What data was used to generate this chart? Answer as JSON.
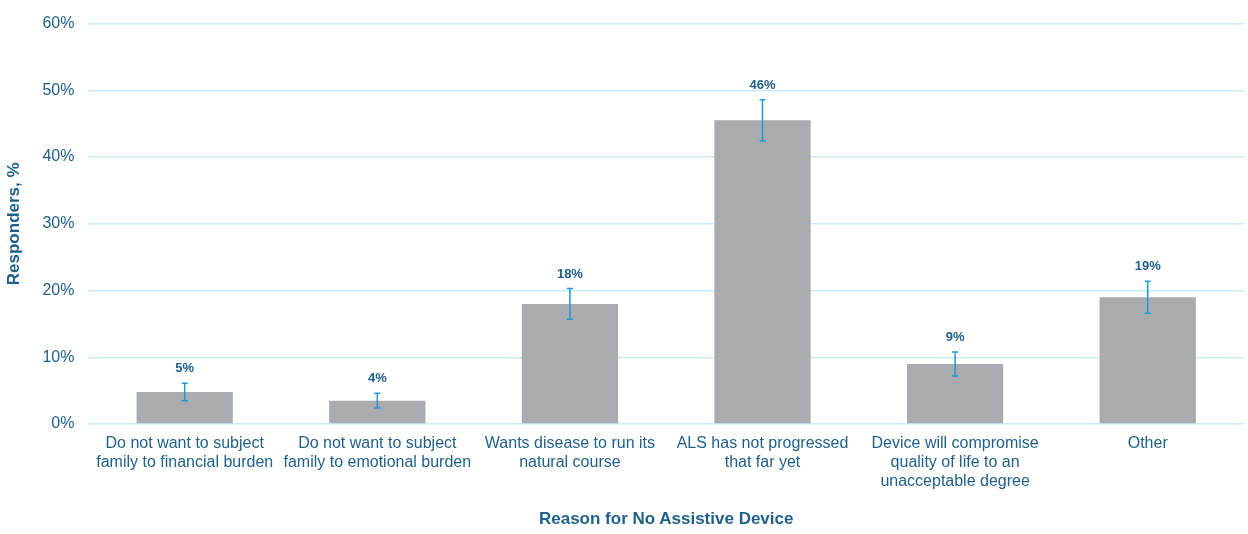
{
  "chart_data": {
    "type": "bar",
    "xlabel": "Reason for No Assistive Device",
    "ylabel": "Responders, %",
    "categories": [
      "Do not want to subject family to financial burden",
      "Do not want to subject family to emotional burden",
      "Wants disease to run its natural course",
      "ALS has not progressed that far yet",
      "Device will compromise quality of life to an unacceptable degree",
      "Other"
    ],
    "values": [
      4.8,
      3.5,
      18,
      45.5,
      9,
      19
    ],
    "errors": [
      1.3,
      1.1,
      2.3,
      3.1,
      1.8,
      2.4
    ],
    "value_labels": [
      "5%",
      "4%",
      "18%",
      "46%",
      "9%",
      "19%"
    ],
    "color": "#aaabae",
    "ylim": [
      0,
      60
    ],
    "yticks": [
      {
        "value": 0,
        "label": "0%"
      },
      {
        "value": 10,
        "label": "10%"
      },
      {
        "value": 20,
        "label": "20%"
      },
      {
        "value": 30,
        "label": "30%"
      },
      {
        "value": 40,
        "label": "40%"
      },
      {
        "value": 50,
        "label": "50%"
      },
      {
        "value": 60,
        "label": "60%"
      }
    ],
    "grid": "y",
    "legend": false
  }
}
